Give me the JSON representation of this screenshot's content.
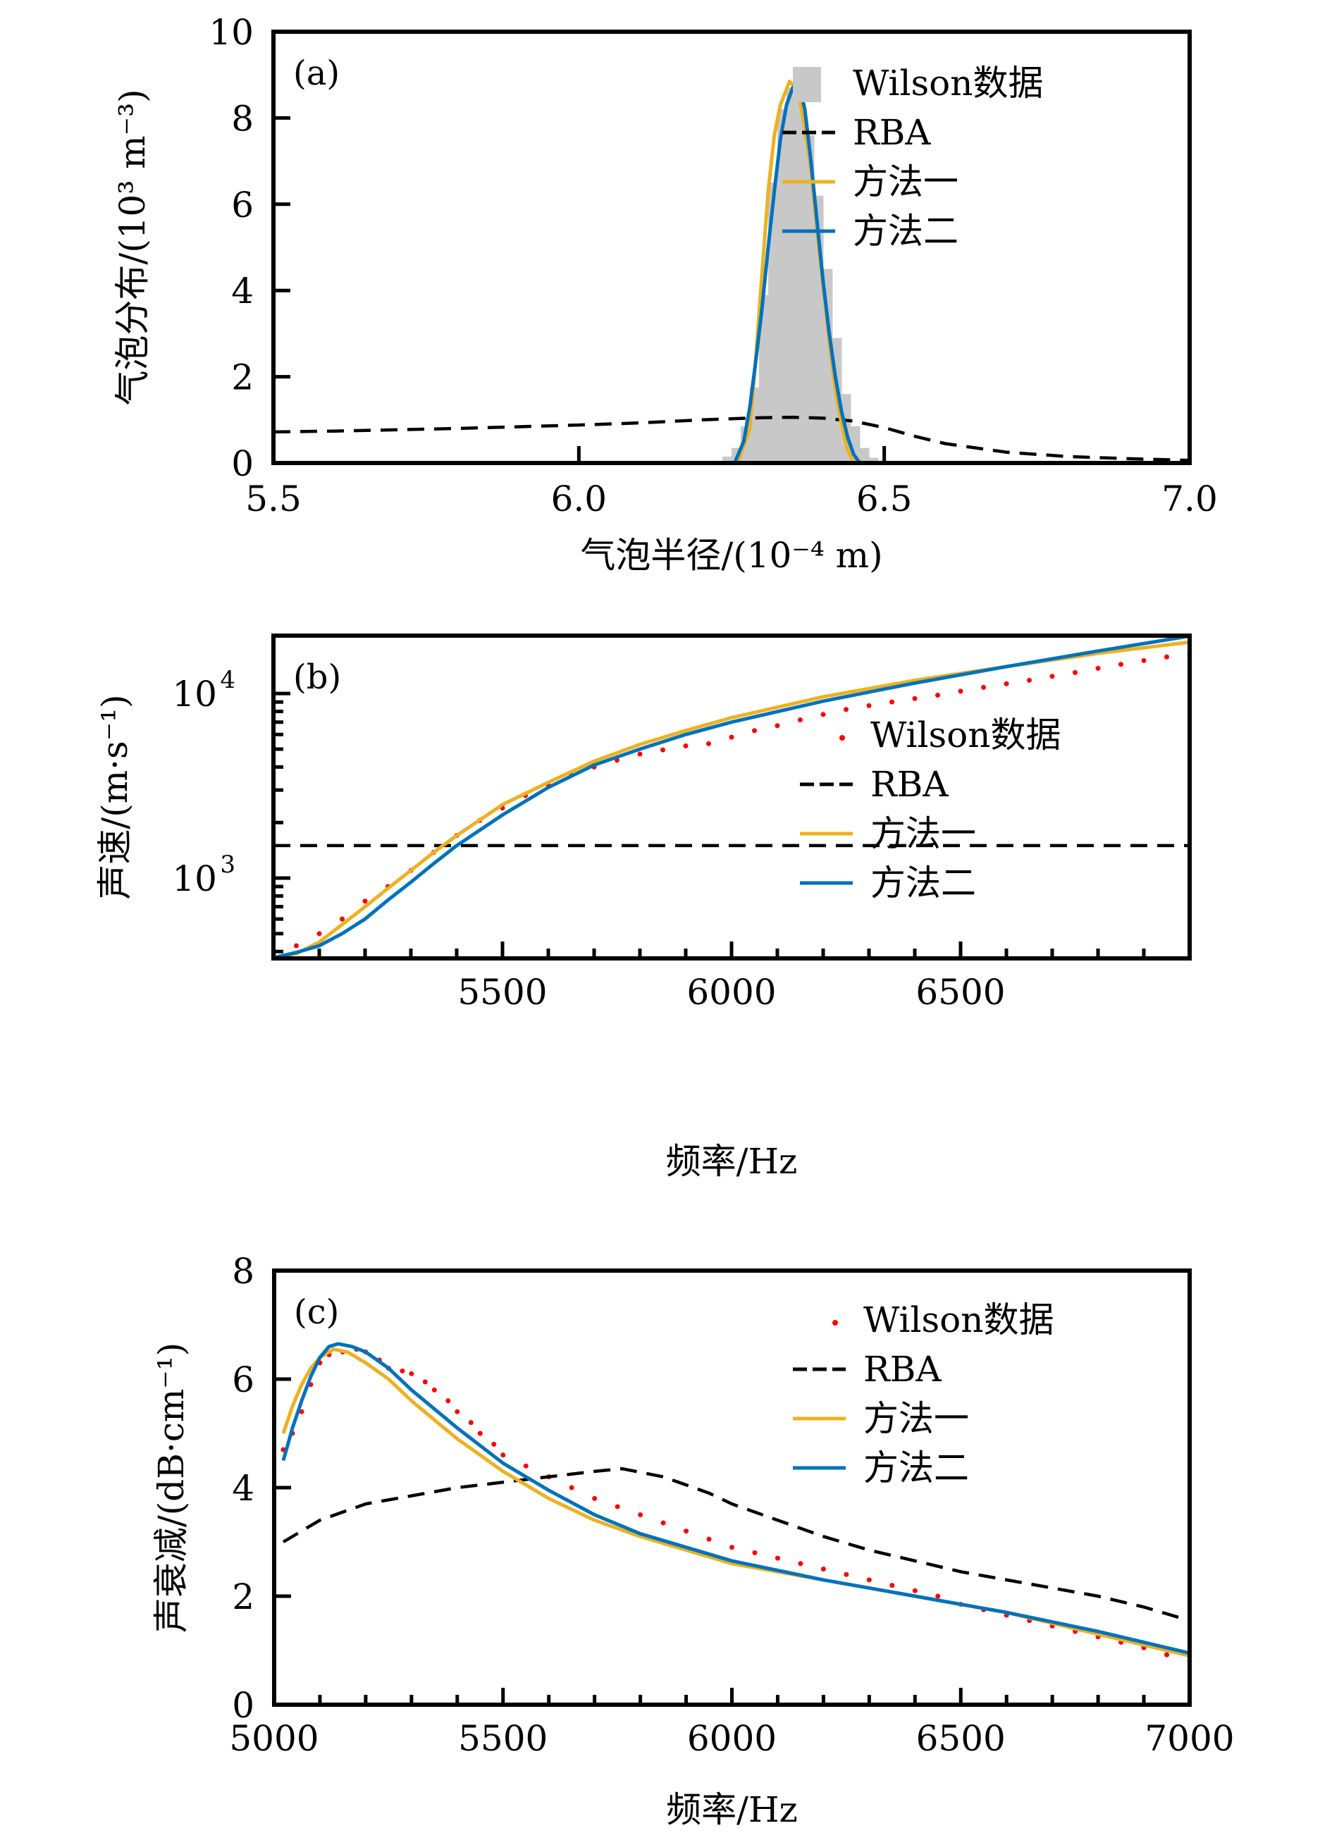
{
  "colors": {
    "wilson_bar": "#c8c8c8",
    "wilson_dot": "#ff0000",
    "rba": "#000000",
    "method1": "#edb120",
    "method2": "#0072bd",
    "axis": "#000000"
  },
  "chart_data": [
    {
      "panel": "(a)",
      "type": "bar",
      "title": "",
      "xlabel": "气泡半径/(10⁻⁴ m)",
      "ylabel": "气泡分布/(10³ m⁻³)",
      "xlim": [
        5.5,
        7.0
      ],
      "ylim": [
        0,
        10
      ],
      "xticks": [
        5.5,
        6.0,
        6.5,
        7.0
      ],
      "xtick_labels": [
        "5.5",
        "6.0",
        "6.5",
        "7.0"
      ],
      "yticks": [
        0,
        2,
        4,
        6,
        8,
        10
      ],
      "ytick_labels": [
        "0",
        "2",
        "4",
        "6",
        "8",
        "10"
      ],
      "legend": {
        "position": "top-right",
        "entries": [
          "Wilson数据",
          "RBA",
          "方法一",
          "方法二"
        ]
      },
      "series": [
        {
          "name": "Wilson数据",
          "kind": "histogram",
          "bin_width": 0.015,
          "x": [
            6.2275,
            6.2425,
            6.2575,
            6.2725,
            6.2875,
            6.3025,
            6.3175,
            6.3325,
            6.3475,
            6.3625,
            6.3775,
            6.3925,
            6.4075,
            6.4225,
            6.4375,
            6.4525,
            6.4675,
            6.4825,
            6.4975,
            6.5125
          ],
          "y": [
            0.05,
            0.15,
            0.35,
            0.85,
            1.75,
            3.9,
            6.5,
            8.2,
            8.7,
            8.6,
            7.6,
            6.2,
            4.5,
            2.9,
            1.6,
            0.85,
            0.35,
            0.12,
            0.05,
            0.02
          ]
        },
        {
          "name": "RBA",
          "kind": "line",
          "style": "dashed",
          "x": [
            5.5,
            5.6,
            5.7,
            5.8,
            5.9,
            6.0,
            6.1,
            6.2,
            6.3,
            6.35,
            6.4,
            6.45,
            6.5,
            6.55,
            6.6,
            6.7,
            6.8,
            6.9,
            7.0
          ],
          "y": [
            0.72,
            0.74,
            0.77,
            0.8,
            0.84,
            0.88,
            0.93,
            1.0,
            1.05,
            1.06,
            1.04,
            0.97,
            0.82,
            0.62,
            0.45,
            0.25,
            0.15,
            0.1,
            0.06
          ]
        },
        {
          "name": "方法一",
          "kind": "line",
          "x": [
            6.26,
            6.28,
            6.29,
            6.3,
            6.31,
            6.32,
            6.33,
            6.345,
            6.355,
            6.365,
            6.38,
            6.39,
            6.4,
            6.41,
            6.42,
            6.43,
            6.44,
            6.45
          ],
          "y": [
            0.0,
            0.8,
            2.5,
            4.4,
            6.3,
            7.6,
            8.3,
            8.85,
            8.7,
            8.2,
            6.8,
            5.4,
            4.1,
            2.8,
            1.7,
            0.9,
            0.3,
            0.0
          ]
        },
        {
          "name": "方法二",
          "kind": "line",
          "x": [
            6.255,
            6.27,
            6.28,
            6.29,
            6.3,
            6.31,
            6.32,
            6.33,
            6.34,
            6.35,
            6.36,
            6.37,
            6.38,
            6.39,
            6.4,
            6.41,
            6.42,
            6.43,
            6.44,
            6.45,
            6.46
          ],
          "y": [
            0.0,
            0.5,
            1.3,
            2.4,
            3.6,
            5.0,
            6.3,
            7.5,
            8.3,
            8.7,
            8.85,
            8.2,
            7.0,
            5.6,
            4.2,
            3.0,
            2.0,
            1.2,
            0.6,
            0.2,
            0.0
          ]
        }
      ]
    },
    {
      "panel": "(b)",
      "type": "line",
      "yscale": "log",
      "title": "",
      "xlabel": "频率/Hz",
      "ylabel": "声速/(m·s⁻¹)",
      "xlim": [
        5000,
        7000
      ],
      "ylim": [
        367,
        20600
      ],
      "xticks": [
        5500,
        6000,
        6500
      ],
      "xtick_labels": [
        "5500",
        "6000",
        "6500"
      ],
      "yticks": [
        1000,
        10000
      ],
      "ytick_labels": [
        "10",
        "10"
      ],
      "ytick_exponents": [
        "3",
        "4"
      ],
      "legend": {
        "position": "right",
        "entries": [
          "Wilson数据",
          "RBA",
          "方法一",
          "方法二"
        ]
      },
      "series": [
        {
          "name": "Wilson数据",
          "kind": "scatter",
          "x": [
            5000,
            5050,
            5100,
            5150,
            5200,
            5250,
            5300,
            5350,
            5400,
            5450,
            5500,
            5550,
            5600,
            5650,
            5700,
            5750,
            5800,
            5850,
            5900,
            5950,
            6000,
            6050,
            6100,
            6150,
            6200,
            6250,
            6300,
            6350,
            6400,
            6450,
            6500,
            6550,
            6600,
            6650,
            6700,
            6750,
            6800,
            6850,
            6900,
            6950,
            7000
          ],
          "y": [
            390,
            430,
            500,
            600,
            750,
            900,
            1100,
            1380,
            1700,
            2050,
            2400,
            2800,
            3200,
            3650,
            4000,
            4350,
            4700,
            4950,
            5200,
            5350,
            5800,
            6300,
            6700,
            7200,
            7700,
            8200,
            8600,
            9000,
            9400,
            9800,
            10300,
            10800,
            11300,
            11800,
            12400,
            13000,
            13700,
            14400,
            15100,
            15800,
            16400
          ]
        },
        {
          "name": "RBA",
          "kind": "line",
          "style": "dashed",
          "x": [
            5000,
            7000
          ],
          "y": [
            1500,
            1500
          ]
        },
        {
          "name": "方法一",
          "kind": "line",
          "x": [
            5000,
            5050,
            5100,
            5150,
            5200,
            5250,
            5300,
            5350,
            5400,
            5500,
            5600,
            5700,
            5800,
            5900,
            6000,
            6200,
            6400,
            6600,
            6800,
            7000
          ],
          "y": [
            370,
            390,
            450,
            560,
            700,
            880,
            1100,
            1380,
            1700,
            2500,
            3300,
            4300,
            5300,
            6300,
            7400,
            9600,
            11800,
            14000,
            16500,
            19000
          ]
        },
        {
          "name": "方法二",
          "kind": "line",
          "x": [
            5000,
            5050,
            5100,
            5150,
            5200,
            5250,
            5300,
            5350,
            5400,
            5500,
            5600,
            5700,
            5800,
            5900,
            6000,
            6200,
            6400,
            6600,
            6800,
            7000
          ],
          "y": [
            370,
            395,
            430,
            500,
            600,
            760,
            950,
            1200,
            1500,
            2200,
            3100,
            4100,
            5000,
            6000,
            7000,
            9100,
            11400,
            14000,
            17000,
            20500
          ]
        }
      ]
    },
    {
      "panel": "(c)",
      "type": "line",
      "title": "",
      "xlabel": "频率/Hz",
      "ylabel": "声衰减/(dB·cm⁻¹)",
      "xlim": [
        5000,
        7000
      ],
      "ylim": [
        0,
        8
      ],
      "xticks": [
        5000,
        5500,
        6000,
        6500,
        7000
      ],
      "xtick_labels": [
        "5000",
        "5500",
        "6000",
        "6500",
        "7000"
      ],
      "yticks": [
        0,
        2,
        4,
        6,
        8
      ],
      "ytick_labels": [
        "0",
        "2",
        "4",
        "6",
        "8"
      ],
      "legend": {
        "position": "top-right",
        "entries": [
          "Wilson数据",
          "RBA",
          "方法一",
          "方法二"
        ]
      },
      "series": [
        {
          "name": "Wilson数据",
          "kind": "scatter",
          "x": [
            5020,
            5040,
            5060,
            5080,
            5100,
            5120,
            5150,
            5180,
            5200,
            5230,
            5250,
            5280,
            5300,
            5330,
            5350,
            5380,
            5400,
            5430,
            5450,
            5480,
            5500,
            5550,
            5600,
            5650,
            5700,
            5750,
            5800,
            5850,
            5900,
            5950,
            6000,
            6050,
            6100,
            6150,
            6200,
            6250,
            6300,
            6350,
            6400,
            6450,
            6500,
            6550,
            6600,
            6650,
            6700,
            6750,
            6800,
            6850,
            6900,
            6950,
            7000
          ],
          "y": [
            4.7,
            5.0,
            5.4,
            5.9,
            6.3,
            6.45,
            6.5,
            6.55,
            6.5,
            6.35,
            6.2,
            6.15,
            6.1,
            5.95,
            5.8,
            5.6,
            5.4,
            5.2,
            5.0,
            4.8,
            4.6,
            4.4,
            4.2,
            4.0,
            3.8,
            3.65,
            3.5,
            3.35,
            3.2,
            3.05,
            2.9,
            2.8,
            2.7,
            2.6,
            2.5,
            2.4,
            2.3,
            2.2,
            2.1,
            2.0,
            1.85,
            1.75,
            1.65,
            1.55,
            1.45,
            1.35,
            1.25,
            1.15,
            1.05,
            0.92,
            0.8
          ]
        },
        {
          "name": "RBA",
          "kind": "line",
          "style": "dashed",
          "x": [
            5020,
            5100,
            5200,
            5300,
            5400,
            5500,
            5600,
            5700,
            5760,
            5850,
            5950,
            6000,
            6100,
            6200,
            6300,
            6400,
            6500,
            6600,
            6700,
            6800,
            6900,
            7000
          ],
          "y": [
            3.0,
            3.4,
            3.7,
            3.85,
            4.0,
            4.1,
            4.2,
            4.3,
            4.35,
            4.2,
            3.9,
            3.7,
            3.4,
            3.1,
            2.85,
            2.65,
            2.45,
            2.3,
            2.15,
            2.0,
            1.8,
            1.55
          ]
        },
        {
          "name": "方法一",
          "kind": "line",
          "x": [
            5020,
            5040,
            5060,
            5080,
            5100,
            5130,
            5160,
            5200,
            5250,
            5300,
            5350,
            5400,
            5500,
            5600,
            5700,
            5800,
            5900,
            6000,
            6200,
            6400,
            6600,
            6800,
            7000
          ],
          "y": [
            5.0,
            5.5,
            5.9,
            6.2,
            6.4,
            6.55,
            6.5,
            6.3,
            6.0,
            5.6,
            5.25,
            4.9,
            4.3,
            3.8,
            3.4,
            3.1,
            2.85,
            2.6,
            2.3,
            2.0,
            1.7,
            1.3,
            0.9
          ]
        },
        {
          "name": "方法二",
          "kind": "line",
          "x": [
            5020,
            5040,
            5060,
            5080,
            5100,
            5120,
            5140,
            5170,
            5200,
            5250,
            5300,
            5350,
            5400,
            5500,
            5600,
            5700,
            5800,
            5900,
            6000,
            6200,
            6400,
            6600,
            6800,
            7000
          ],
          "y": [
            4.5,
            5.1,
            5.6,
            6.05,
            6.4,
            6.6,
            6.65,
            6.6,
            6.5,
            6.2,
            5.8,
            5.45,
            5.1,
            4.45,
            3.95,
            3.5,
            3.15,
            2.9,
            2.65,
            2.3,
            2.0,
            1.7,
            1.35,
            0.95
          ]
        }
      ]
    }
  ]
}
